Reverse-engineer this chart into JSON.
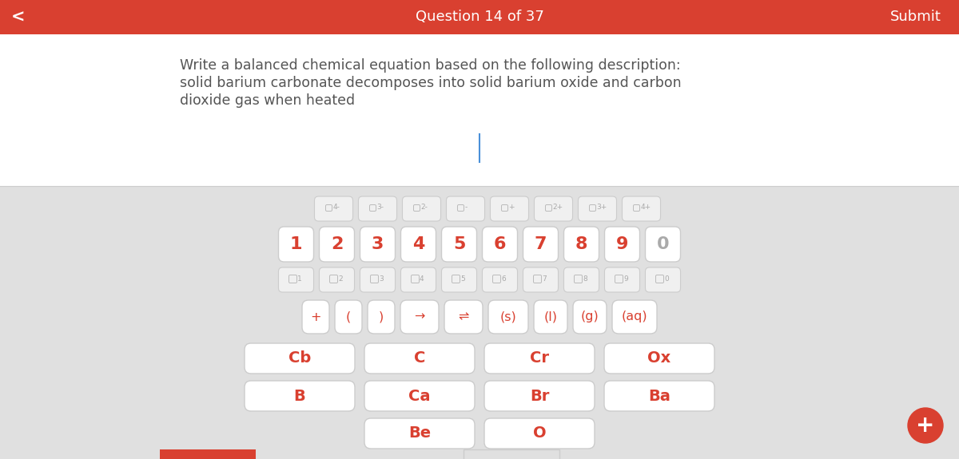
{
  "header_color": "#d94030",
  "header_text": "Question 14 of 37",
  "header_text_color": "#ffffff",
  "submit_text": "Submit",
  "back_arrow": "<",
  "question_text_line1": "Write a balanced chemical equation based on the following description:",
  "question_text_line2": "solid barium carbonate decomposes into solid barium oxide and carbon",
  "question_text_line3": "dioxide gas when heated",
  "question_text_color": "#555555",
  "question_bg": "#ffffff",
  "keyboard_bg": "#e0e0e0",
  "cursor_color": "#4a90d9",
  "superscript_keys": [
    "4-",
    "3-",
    "2-",
    "-",
    "+",
    "2+",
    "3+",
    "4+"
  ],
  "number_keys": [
    "1",
    "2",
    "3",
    "4",
    "5",
    "6",
    "7",
    "8",
    "9",
    "0"
  ],
  "subscript_keys": [
    "1",
    "2",
    "3",
    "4",
    "5",
    "6",
    "7",
    "8",
    "9",
    "0"
  ],
  "symbol_keys": [
    "+",
    "(",
    ")",
    "→",
    "⇌",
    "(s)",
    "(l)",
    "(g)",
    "(aq)"
  ],
  "element_row1": [
    "Cb",
    "C",
    "Cr",
    "Ox"
  ],
  "element_row2": [
    "B",
    "Ca",
    "Br",
    "Ba"
  ],
  "element_row3": [
    "Be",
    "O"
  ],
  "key_bg": "#ffffff",
  "key_bg_light": "#f5f5f5",
  "key_border": "#cccccc",
  "key_text_color_red": "#d94030",
  "key_text_color_gray": "#aaaaaa",
  "plus_button_color": "#d94030",
  "fig_width": 12,
  "fig_height": 5.75,
  "dpi": 100
}
